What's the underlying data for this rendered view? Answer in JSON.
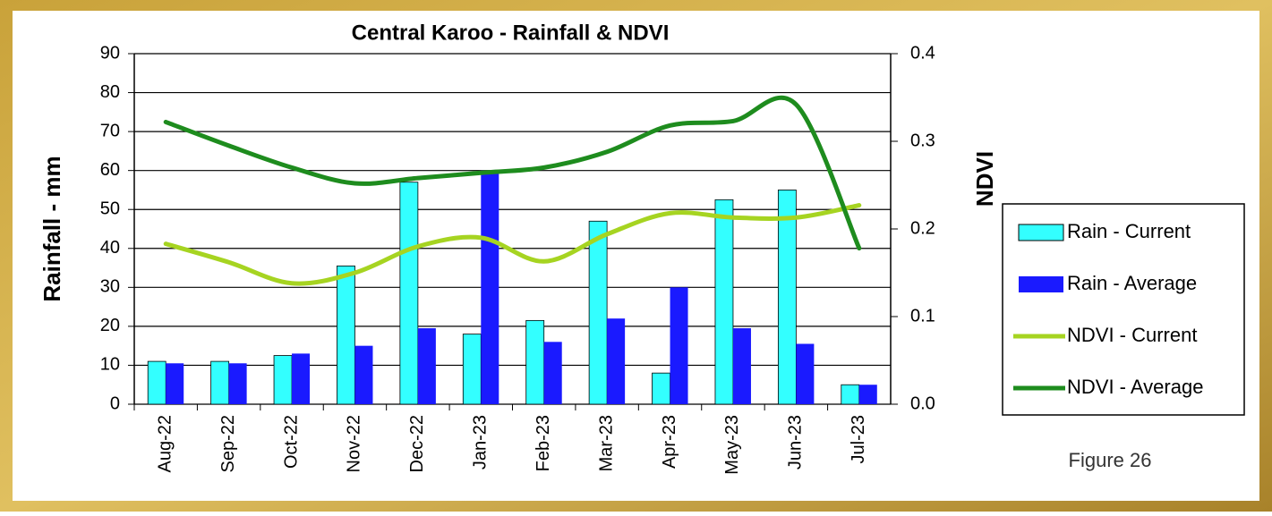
{
  "chart_data": {
    "type": "bar_line_combo",
    "title": "Central Karoo - Rainfall & NDVI",
    "y_label": "Rainfall - mm",
    "y2_label": "NDVI",
    "annotation": "Figure 26",
    "categories": [
      "Aug-22",
      "Sep-22",
      "Oct-22",
      "Nov-22",
      "Dec-22",
      "Jan-23",
      "Feb-23",
      "Mar-23",
      "Apr-23",
      "May-23",
      "Jun-23",
      "Jul-23"
    ],
    "series": [
      {
        "name": "Rain - Current",
        "type": "bar",
        "color": "#33ffff",
        "values": [
          11,
          11,
          12.5,
          35.5,
          57,
          18,
          21.5,
          47,
          8,
          52.5,
          55,
          5
        ]
      },
      {
        "name": "Rain - Average",
        "type": "bar",
        "color": "#1a1aff",
        "values": [
          10.5,
          10.5,
          13,
          15,
          19.5,
          60,
          16,
          22,
          30,
          19.5,
          15.5,
          5
        ]
      },
      {
        "name": "NDVI - Current",
        "type": "line",
        "axis": "y2",
        "color": "#a6d421",
        "values": [
          0.183,
          0.162,
          0.138,
          0.15,
          0.18,
          0.19,
          0.163,
          0.194,
          0.218,
          0.213,
          0.213,
          0.227
        ]
      },
      {
        "name": "NDVI - Average",
        "type": "line",
        "axis": "y2",
        "color": "#1e8c1e",
        "values": [
          0.322,
          0.295,
          0.27,
          0.252,
          0.258,
          0.264,
          0.27,
          0.288,
          0.318,
          0.323,
          0.342,
          0.178
        ]
      }
    ],
    "ylim": [
      0,
      90
    ],
    "yticks": [
      0,
      10,
      20,
      30,
      40,
      50,
      60,
      70,
      80,
      90
    ],
    "y2lim": [
      0,
      0.4
    ],
    "y2ticks": [
      {
        "value": 0,
        "label": "0.0"
      },
      0.1,
      0.2,
      0.3,
      0.4
    ],
    "grid": true
  }
}
